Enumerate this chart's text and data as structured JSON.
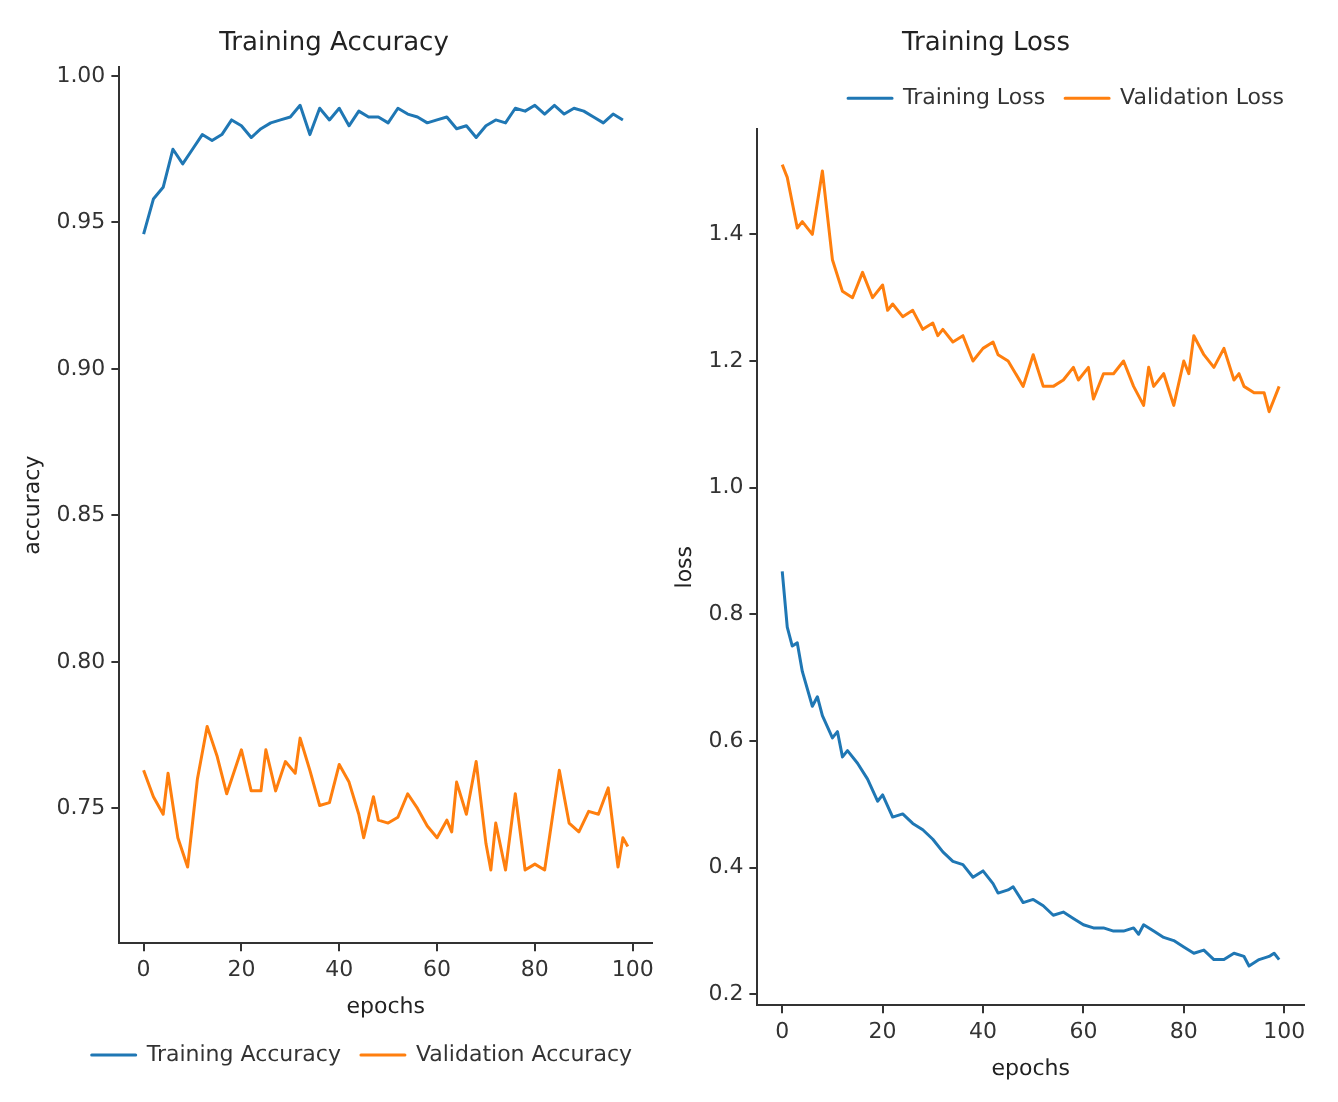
{
  "chart_data": [
    {
      "type": "line",
      "title": "Training Accuracy",
      "xlabel": "epochs",
      "ylabel": "accuracy",
      "xlim": [
        -4.95,
        103.95
      ],
      "ylim": [
        0.704,
        1.003
      ],
      "xticks": [
        0,
        20,
        40,
        60,
        80,
        100
      ],
      "yticks": [
        0.75,
        {
          "value": 0.8,
          "label": "0.80"
        },
        0.85,
        {
          "value": 0.9,
          "label": "0.90"
        },
        0.95,
        {
          "value": 1,
          "label": "1.00"
        }
      ],
      "grid": false,
      "legend": "bottom right",
      "marker": "none",
      "line_style": "solid",
      "series": [
        {
          "name": "Training Accuracy",
          "color": "#1f77b4",
          "x": [
            0,
            2,
            4,
            6,
            8,
            10,
            12,
            14,
            16,
            18,
            20,
            22,
            24,
            26,
            28,
            30,
            32,
            34,
            36,
            38,
            40,
            42,
            44,
            46,
            48,
            50,
            52,
            54,
            56,
            58,
            60,
            62,
            64,
            66,
            68,
            70,
            72,
            74,
            76,
            78,
            80,
            82,
            84,
            86,
            88,
            90,
            92,
            94,
            96,
            98
          ],
          "values": [
            0.946,
            0.958,
            0.962,
            0.975,
            0.97,
            0.975,
            0.98,
            0.978,
            0.98,
            0.985,
            0.983,
            0.979,
            0.982,
            0.984,
            0.985,
            0.986,
            0.99,
            0.98,
            0.989,
            0.985,
            0.989,
            0.983,
            0.988,
            0.986,
            0.986,
            0.984,
            0.989,
            0.987,
            0.986,
            0.984,
            0.985,
            0.986,
            0.982,
            0.983,
            0.979,
            0.983,
            0.985,
            0.984,
            0.989,
            0.988,
            0.99,
            0.987,
            0.99,
            0.987,
            0.989,
            0.988,
            0.986,
            0.984,
            0.987,
            0.985
          ]
        },
        {
          "name": "Validation Accuracy",
          "color": "#ff7f0e",
          "x": [
            0,
            2,
            4,
            5,
            7,
            9,
            11,
            13,
            15,
            17,
            20,
            22,
            24,
            25,
            27,
            29,
            31,
            32,
            34,
            36,
            38,
            40,
            42,
            44,
            45,
            47,
            48,
            50,
            52,
            54,
            56,
            58,
            60,
            62,
            63,
            64,
            66,
            68,
            70,
            71,
            72,
            74,
            76,
            78,
            80,
            82,
            85,
            87,
            89,
            91,
            93,
            95,
            97,
            98,
            99
          ],
          "values": [
            0.763,
            0.754,
            0.748,
            0.762,
            0.74,
            0.73,
            0.76,
            0.778,
            0.768,
            0.755,
            0.77,
            0.756,
            0.756,
            0.77,
            0.756,
            0.766,
            0.762,
            0.774,
            0.763,
            0.751,
            0.752,
            0.765,
            0.759,
            0.748,
            0.74,
            0.754,
            0.746,
            0.745,
            0.747,
            0.755,
            0.75,
            0.744,
            0.74,
            0.746,
            0.742,
            0.759,
            0.748,
            0.766,
            0.738,
            0.729,
            0.745,
            0.729,
            0.755,
            0.729,
            0.731,
            0.729,
            0.763,
            0.745,
            0.742,
            0.749,
            0.748,
            0.757,
            0.73,
            0.74,
            0.737
          ]
        }
      ]
    },
    {
      "type": "line",
      "title": "Training Loss",
      "xlabel": "epochs",
      "ylabel": "loss",
      "xlim": [
        -4.95,
        103.95
      ],
      "ylim": [
        0.183,
        1.566
      ],
      "xticks": [
        0,
        20,
        40,
        60,
        80,
        100
      ],
      "yticks": [
        0.2,
        0.4,
        0.6,
        0.8,
        {
          "value": 1,
          "label": "1.0"
        },
        1.2,
        1.4
      ],
      "grid": false,
      "legend": "top right",
      "marker": "none",
      "line_style": "solid",
      "series": [
        {
          "name": "Training Loss",
          "color": "#1f77b4",
          "x": [
            0,
            1,
            2,
            3,
            4,
            6,
            7,
            8,
            10,
            11,
            12,
            13,
            15,
            17,
            19,
            20,
            22,
            24,
            26,
            28,
            30,
            32,
            34,
            36,
            38,
            40,
            42,
            43,
            45,
            46,
            48,
            50,
            52,
            54,
            56,
            58,
            60,
            62,
            64,
            66,
            68,
            70,
            71,
            72,
            74,
            76,
            78,
            80,
            82,
            84,
            86,
            88,
            90,
            92,
            93,
            95,
            97,
            98,
            99
          ],
          "values": [
            0.868,
            0.78,
            0.75,
            0.755,
            0.71,
            0.655,
            0.67,
            0.64,
            0.605,
            0.615,
            0.575,
            0.585,
            0.565,
            0.54,
            0.505,
            0.515,
            0.48,
            0.485,
            0.47,
            0.46,
            0.445,
            0.425,
            0.41,
            0.405,
            0.385,
            0.395,
            0.375,
            0.36,
            0.365,
            0.37,
            0.345,
            0.35,
            0.34,
            0.325,
            0.33,
            0.32,
            0.31,
            0.305,
            0.305,
            0.3,
            0.3,
            0.305,
            0.295,
            0.31,
            0.3,
            0.29,
            0.285,
            0.275,
            0.265,
            0.27,
            0.255,
            0.255,
            0.265,
            0.26,
            0.245,
            0.255,
            0.26,
            0.265,
            0.255
          ]
        },
        {
          "name": "Validation Loss",
          "color": "#ff7f0e",
          "x": [
            0,
            1,
            3,
            4,
            6,
            8,
            10,
            12,
            14,
            16,
            18,
            20,
            21,
            22,
            24,
            26,
            28,
            30,
            31,
            32,
            34,
            36,
            38,
            40,
            42,
            43,
            45,
            48,
            50,
            52,
            54,
            56,
            58,
            59,
            61,
            62,
            64,
            66,
            68,
            70,
            72,
            73,
            74,
            76,
            78,
            80,
            81,
            82,
            84,
            86,
            88,
            90,
            91,
            92,
            94,
            96,
            97,
            99
          ],
          "values": [
            1.51,
            1.49,
            1.41,
            1.42,
            1.4,
            1.5,
            1.36,
            1.31,
            1.3,
            1.34,
            1.3,
            1.32,
            1.28,
            1.29,
            1.27,
            1.28,
            1.25,
            1.26,
            1.24,
            1.25,
            1.23,
            1.24,
            1.2,
            1.22,
            1.23,
            1.21,
            1.2,
            1.16,
            1.21,
            1.16,
            1.16,
            1.17,
            1.19,
            1.17,
            1.19,
            1.14,
            1.18,
            1.18,
            1.2,
            1.16,
            1.13,
            1.19,
            1.16,
            1.18,
            1.13,
            1.2,
            1.18,
            1.24,
            1.21,
            1.19,
            1.22,
            1.17,
            1.18,
            1.16,
            1.15,
            1.15,
            1.12,
            1.16
          ]
        }
      ]
    }
  ]
}
